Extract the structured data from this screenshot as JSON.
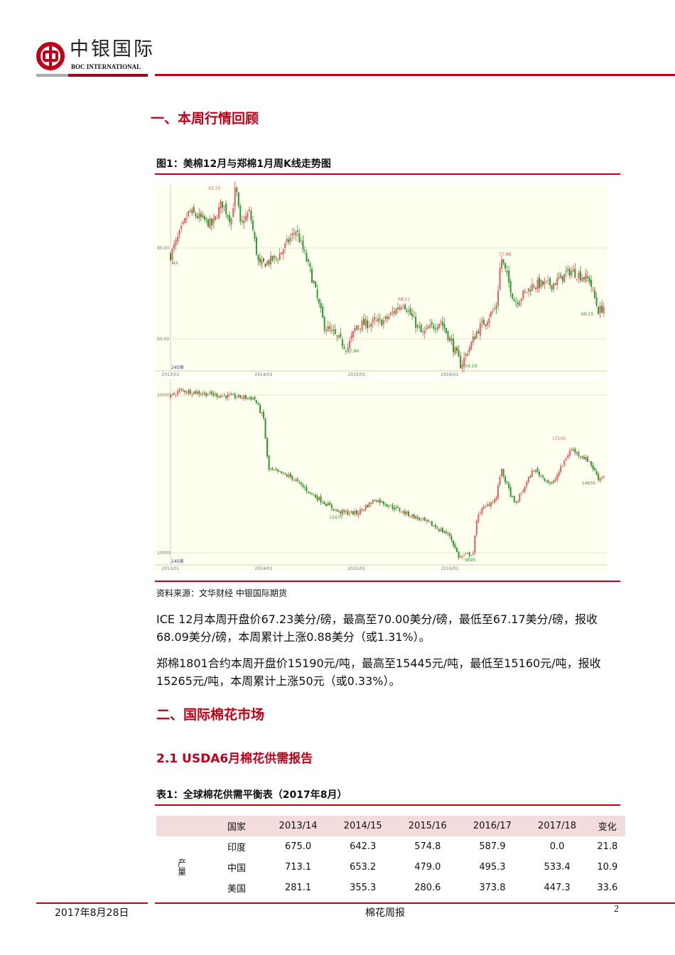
{
  "header": {
    "logo_cn": "中银国际",
    "logo_en": "BOC INTERNATIONAL"
  },
  "section1": {
    "title": "一、本周行情回顾"
  },
  "figure1": {
    "caption": "图1：美棉12月与郑棉1月周K线走势图",
    "source": "资料来源：文华财经   中银国际期货",
    "ice": {
      "yticks": [
        "80.00",
        "60.00"
      ],
      "xticks": [
        "2013/01",
        "2014/01",
        "2015/01",
        "2016/01"
      ],
      "period": "245周",
      "start_label": ".42",
      "labels": {
        "high": "93.72",
        "low1": "57.84",
        "mid": "68.11",
        "low2": "54.19",
        "high2": "77.98",
        "last": "66.15"
      },
      "keypoints": [
        [
          2013.0,
          78.4
        ],
        [
          2013.2,
          88
        ],
        [
          2013.45,
          85
        ],
        [
          2013.55,
          90
        ],
        [
          2013.65,
          86
        ],
        [
          2013.7,
          93.7
        ],
        [
          2013.75,
          85
        ],
        [
          2013.85,
          88
        ],
        [
          2013.95,
          76
        ],
        [
          2014.15,
          78
        ],
        [
          2014.35,
          84
        ],
        [
          2014.5,
          75
        ],
        [
          2014.65,
          63
        ],
        [
          2014.8,
          60
        ],
        [
          2014.9,
          58
        ],
        [
          2015.0,
          63
        ],
        [
          2015.3,
          64
        ],
        [
          2015.5,
          68.1
        ],
        [
          2015.7,
          61
        ],
        [
          2015.9,
          64
        ],
        [
          2016.0,
          60
        ],
        [
          2016.12,
          54.2
        ],
        [
          2016.3,
          62
        ],
        [
          2016.5,
          67
        ],
        [
          2016.55,
          78
        ],
        [
          2016.7,
          68
        ],
        [
          2016.9,
          72
        ],
        [
          2017.1,
          72
        ],
        [
          2017.3,
          75
        ],
        [
          2017.5,
          73
        ],
        [
          2017.6,
          66
        ],
        [
          2017.67,
          67.5
        ]
      ]
    },
    "zce": {
      "yticks": [
        "20000",
        "10000"
      ],
      "xticks": [
        "2013/01",
        "2014/01",
        "2015/01",
        "2016/01"
      ],
      "period": "245周",
      "labels": {
        "low1": "12470",
        "low2": "9645",
        "high": "17105",
        "last": "14650"
      },
      "keypoints": [
        [
          2013.0,
          19900
        ],
        [
          2013.1,
          20300
        ],
        [
          2013.5,
          20000
        ],
        [
          2013.9,
          19800
        ],
        [
          2014.0,
          18500
        ],
        [
          2014.05,
          15300
        ],
        [
          2014.3,
          14800
        ],
        [
          2014.5,
          13800
        ],
        [
          2014.8,
          12600
        ],
        [
          2015.0,
          12500
        ],
        [
          2015.2,
          13400
        ],
        [
          2015.5,
          12600
        ],
        [
          2015.8,
          11800
        ],
        [
          2016.0,
          11100
        ],
        [
          2016.1,
          9700
        ],
        [
          2016.25,
          10000
        ],
        [
          2016.3,
          12500
        ],
        [
          2016.5,
          13500
        ],
        [
          2016.55,
          15300
        ],
        [
          2016.7,
          13000
        ],
        [
          2016.9,
          15300
        ],
        [
          2017.1,
          14300
        ],
        [
          2017.3,
          16600
        ],
        [
          2017.5,
          15800
        ],
        [
          2017.6,
          14700
        ],
        [
          2017.67,
          14950
        ]
      ]
    },
    "colors": {
      "up": "#e06060",
      "down": "#2a9a2a",
      "bg": "#fffff0"
    }
  },
  "paragraphs": [
    "ICE 12月本周开盘价67.23美分/磅，最高至70.00美分/磅，最低至67.17美分/磅，报收68.09美分/磅，本周累计上涨0.88美分（或1.31%）。",
    "郑棉1801合约本周开盘价15190元/吨，最高至15445元/吨，最低至15160元/吨，报收15265元/吨，本周累计上涨50元（或0.33%）。"
  ],
  "section2": {
    "title": "二、国际棉花市场"
  },
  "section21": {
    "title": "2.1   USDA6月棉花供需报告"
  },
  "table1": {
    "caption": "表1：全球棉花供需平衡表（2017年8月）",
    "headers": [
      "",
      "国家",
      "2013/14",
      "2014/15",
      "2015/16",
      "2016/17",
      "2017/18",
      "变化"
    ],
    "group": "产量",
    "rows": [
      [
        "印度",
        "675.0",
        "642.3",
        "574.8",
        "587.9",
        "0.0",
        "21.8"
      ],
      [
        "中国",
        "713.1",
        "653.2",
        "479.0",
        "495.3",
        "533.4",
        "10.9"
      ],
      [
        "美国",
        "281.1",
        "355.3",
        "280.6",
        "373.8",
        "447.3",
        "33.6"
      ]
    ]
  },
  "footer": {
    "date": "2017年8月28日",
    "title": "棉花周报",
    "page": "2"
  }
}
